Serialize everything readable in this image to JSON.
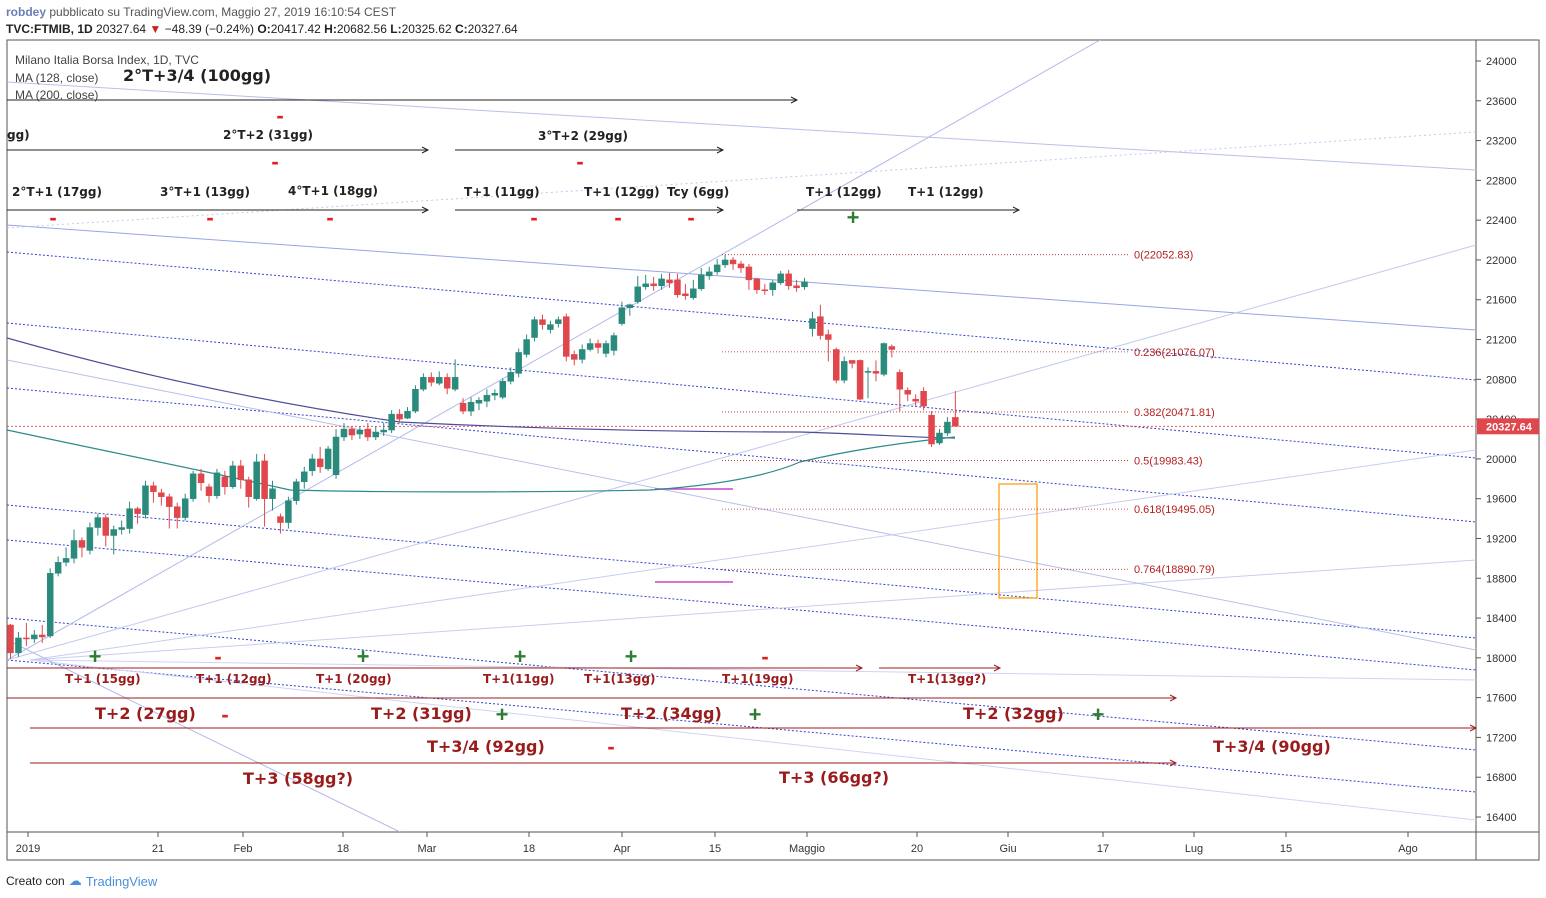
{
  "header": {
    "author": "robdey",
    "published": "pubblicato su TradingView.com, Maggio 27, 2019 16:10:54 CEST",
    "symbol": "TVC:FTMIB, 1D",
    "last": "20327.64",
    "change": "−48.39 (−0.24%)",
    "ohlc_o_label": "O:",
    "ohlc_o": "20417.42",
    "ohlc_h_label": "H:",
    "ohlc_h": "20682.56",
    "ohlc_l_label": "L:",
    "ohlc_l": "20325.62",
    "ohlc_c_label": "C:",
    "ohlc_c": "20327.64"
  },
  "legend": {
    "title": "Milano Italia Borsa Index, 1D, TVC",
    "ma128": "MA (128, close)",
    "ma200": "MA (200, close)"
  },
  "footer": {
    "created_with": "Creato con",
    "brand": "TradingView"
  },
  "colors": {
    "up": "#2a8a7c",
    "down": "#e0474c",
    "annot": "#9b1c1c",
    "plus": "#2e7d32",
    "minus": "#e02020",
    "fib": "#b22222",
    "channel_blue": "#2233cc",
    "ma128": "#2a8a8a",
    "ma200": "#4b4d9a",
    "last_badge": "#e0474c",
    "box": "#ff9800",
    "magenta": "#cc44cc"
  },
  "chart_data": {
    "type": "candlestick",
    "title": "Milano Italia Borsa Index, 1D, TVC",
    "y_axis": {
      "ylim": [
        16200,
        24200
      ],
      "ticks": [
        16400,
        16800,
        17200,
        17600,
        18000,
        18400,
        18800,
        19200,
        19600,
        20000,
        20400,
        20800,
        21200,
        21600,
        22000,
        22400,
        22800,
        23200,
        23600,
        24000
      ],
      "side": "right"
    },
    "x_axis": {
      "labels": [
        "2019",
        "21",
        "Feb",
        "18",
        "Mar",
        "18",
        "Apr",
        "15",
        "Maggio",
        "20",
        "Giu",
        "17",
        "Lug",
        "15",
        "Ago"
      ]
    },
    "last_price": 20327.64,
    "candles_start": "2019-01-02",
    "candles": [
      [
        18330,
        18050,
        18340,
        17990
      ],
      [
        18050,
        18200,
        18260,
        18010
      ],
      [
        18200,
        18190,
        18350,
        18120
      ],
      [
        18190,
        18230,
        18280,
        18150
      ],
      [
        18230,
        18210,
        18330,
        18150
      ],
      [
        18220,
        18850,
        18900,
        18200
      ],
      [
        18850,
        18960,
        19020,
        18820
      ],
      [
        18960,
        19000,
        19110,
        18920
      ],
      [
        19000,
        19180,
        19290,
        18950
      ],
      [
        19180,
        19110,
        19210,
        19010
      ],
      [
        19080,
        19310,
        19360,
        19040
      ],
      [
        19310,
        19410,
        19450,
        19230
      ],
      [
        19410,
        19230,
        19440,
        19120
      ],
      [
        19230,
        19290,
        19330,
        19040
      ],
      [
        19290,
        19310,
        19380,
        19240
      ],
      [
        19300,
        19500,
        19570,
        19250
      ],
      [
        19500,
        19450,
        19520,
        19350
      ],
      [
        19440,
        19730,
        19780,
        19400
      ],
      [
        19730,
        19670,
        19770,
        19560
      ],
      [
        19660,
        19620,
        19700,
        19530
      ],
      [
        19620,
        19520,
        19650,
        19300
      ],
      [
        19520,
        19410,
        19560,
        19300
      ],
      [
        19410,
        19600,
        19650,
        19380
      ],
      [
        19600,
        19850,
        19880,
        19570
      ],
      [
        19850,
        19760,
        19900,
        19680
      ],
      [
        19720,
        19630,
        19750,
        19560
      ],
      [
        19630,
        19860,
        19900,
        19600
      ],
      [
        19820,
        19720,
        19880,
        19640
      ],
      [
        19720,
        19930,
        19980,
        19700
      ],
      [
        19930,
        19790,
        19990,
        19700
      ],
      [
        19790,
        19620,
        19820,
        19510
      ],
      [
        19600,
        19970,
        20050,
        19580
      ],
      [
        19980,
        19600,
        20050,
        19320
      ],
      [
        19600,
        19700,
        19780,
        19480
      ],
      [
        19420,
        19360,
        19450,
        19250
      ],
      [
        19360,
        19580,
        19620,
        19300
      ],
      [
        19580,
        19770,
        19800,
        19540
      ],
      [
        19770,
        19870,
        19920,
        19700
      ],
      [
        19880,
        20000,
        20050,
        19830
      ],
      [
        20000,
        19920,
        20120,
        19860
      ],
      [
        19900,
        20100,
        20130,
        19880
      ],
      [
        19840,
        20220,
        20300,
        19800
      ],
      [
        20220,
        20300,
        20360,
        20180
      ],
      [
        20300,
        20240,
        20330,
        20190
      ],
      [
        20250,
        20290,
        20330,
        20200
      ],
      [
        20300,
        20220,
        20360,
        20180
      ],
      [
        20220,
        20270,
        20330,
        20190
      ],
      [
        20270,
        20290,
        20360,
        20230
      ],
      [
        20290,
        20450,
        20490,
        20260
      ],
      [
        20450,
        20400,
        20500,
        20360
      ],
      [
        20410,
        20480,
        20520,
        20400
      ],
      [
        20480,
        20700,
        20740,
        20460
      ],
      [
        20700,
        20820,
        20860,
        20680
      ],
      [
        20820,
        20770,
        20870,
        20730
      ],
      [
        20760,
        20820,
        20880,
        20740
      ],
      [
        20820,
        20710,
        20860,
        20650
      ],
      [
        20700,
        20820,
        21000,
        20680
      ],
      [
        20560,
        20480,
        20610,
        20450
      ],
      [
        20480,
        20570,
        20620,
        20430
      ],
      [
        20560,
        20590,
        20620,
        20490
      ],
      [
        20580,
        20640,
        20700,
        20520
      ],
      [
        20640,
        20660,
        20700,
        20590
      ],
      [
        20620,
        20780,
        20810,
        20600
      ],
      [
        20780,
        20870,
        20920,
        20750
      ],
      [
        20860,
        21070,
        21110,
        20820
      ],
      [
        21050,
        21200,
        21250,
        21020
      ],
      [
        21220,
        21400,
        21430,
        21180
      ],
      [
        21400,
        21350,
        21450,
        21300
      ],
      [
        21300,
        21350,
        21390,
        21260
      ],
      [
        21360,
        21400,
        21430,
        21320
      ],
      [
        21430,
        21030,
        21460,
        20980
      ],
      [
        21050,
        21000,
        21090,
        20940
      ],
      [
        21000,
        21100,
        21150,
        20960
      ],
      [
        21100,
        21160,
        21210,
        21080
      ],
      [
        21160,
        21120,
        21200,
        21060
      ],
      [
        21060,
        21160,
        21190,
        21020
      ],
      [
        21090,
        21240,
        21270,
        21040
      ],
      [
        21360,
        21520,
        21580,
        21340
      ],
      [
        21520,
        21550,
        21560,
        21440
      ],
      [
        21580,
        21730,
        21840,
        21560
      ],
      [
        21730,
        21760,
        21850,
        21700
      ],
      [
        21760,
        21740,
        21830,
        21690
      ],
      [
        21740,
        21810,
        21860,
        21700
      ],
      [
        21800,
        21770,
        21870,
        21720
      ],
      [
        21800,
        21650,
        21860,
        21620
      ],
      [
        21660,
        21640,
        21760,
        21600
      ],
      [
        21620,
        21710,
        21800,
        21600
      ],
      [
        21710,
        21850,
        21920,
        21690
      ],
      [
        21840,
        21880,
        21930,
        21800
      ],
      [
        21880,
        21950,
        22010,
        21850
      ],
      [
        21950,
        22000,
        22052,
        21920
      ],
      [
        22000,
        21960,
        22030,
        21900
      ],
      [
        21960,
        21920,
        21990,
        21870
      ],
      [
        21930,
        21800,
        21960,
        21700
      ],
      [
        21810,
        21700,
        21820,
        21660
      ],
      [
        21700,
        21690,
        21760,
        21650
      ],
      [
        21700,
        21770,
        21800,
        21640
      ],
      [
        21770,
        21860,
        21890,
        21750
      ],
      [
        21860,
        21740,
        21900,
        21700
      ],
      [
        21740,
        21720,
        21800,
        21680
      ],
      [
        21730,
        21780,
        21820,
        21700
      ],
      [
        21310,
        21410,
        21480,
        21230
      ],
      [
        21430,
        21240,
        21550,
        21200
      ],
      [
        21250,
        21200,
        21300,
        20980
      ],
      [
        21100,
        20790,
        21120,
        20760
      ],
      [
        20790,
        20980,
        21030,
        20760
      ],
      [
        20990,
        20960,
        20990,
        20910
      ],
      [
        20990,
        20600,
        21000,
        20590
      ],
      [
        20870,
        20880,
        20920,
        20610
      ],
      [
        20880,
        20860,
        20990,
        20780
      ],
      [
        20850,
        21160,
        21170,
        20830
      ],
      [
        21130,
        21100,
        21150,
        21020
      ],
      [
        20870,
        20700,
        20900,
        20480
      ],
      [
        20690,
        20650,
        20720,
        20580
      ],
      [
        20600,
        20580,
        20650,
        20530
      ],
      [
        20680,
        20530,
        20720,
        20490
      ],
      [
        20440,
        20150,
        20480,
        20120
      ],
      [
        20160,
        20260,
        20300,
        20140
      ],
      [
        20260,
        20370,
        20420,
        20230
      ],
      [
        20417,
        20327,
        20682,
        20325
      ]
    ],
    "fibonacci": [
      {
        "label": "0(22052.83)",
        "value": 22052.83
      },
      {
        "label": "0.236(21076.07)",
        "value": 21076.07
      },
      {
        "label": "0.382(20471.81)",
        "value": 20471.81
      },
      {
        "label": "0.5(19983.43)",
        "value": 19983.43
      },
      {
        "label": "0.618(19495.05)",
        "value": 19495.05
      },
      {
        "label": "0.764(18890.79)",
        "value": 18890.79
      }
    ],
    "annotations_top": [
      {
        "text": "2°T+3/4 (100gg)"
      },
      {
        "text": "gg)"
      },
      {
        "text": "2°T+2 (31gg)"
      },
      {
        "text": "3°T+2 (29gg)"
      },
      {
        "text": "2°T+1 (17gg)"
      },
      {
        "text": "3°T+1 (13gg)"
      },
      {
        "text": "4°T+1 (18gg)"
      },
      {
        "text": "T+1 (11gg)"
      },
      {
        "text": "T+1 (12gg)"
      },
      {
        "text": "Tcy (6gg)"
      },
      {
        "text": "T+1 (12gg)"
      },
      {
        "text": "T+1 (12gg)"
      }
    ],
    "annotations_bottom": [
      {
        "text": "T+1 (15gg)"
      },
      {
        "text": "T+1 (12gg)"
      },
      {
        "text": "T+1 (20gg)"
      },
      {
        "text": "T+1(11gg)"
      },
      {
        "text": "T+1(13gg)"
      },
      {
        "text": "T+1(19gg)"
      },
      {
        "text": "T+1(13gg?)"
      },
      {
        "text": "T+2 (27gg)"
      },
      {
        "text": "T+2 (31gg)"
      },
      {
        "text": "T+2 (34gg)"
      },
      {
        "text": "T+2 (32gg)"
      },
      {
        "text": "T+3/4 (92gg)"
      },
      {
        "text": "T+3/4 (90gg)"
      },
      {
        "text": "T+3 (58gg?)"
      },
      {
        "text": "T+3 (66gg?)"
      }
    ],
    "signs": [
      "-",
      "-",
      "-",
      "-",
      "-",
      "-",
      "-",
      "-",
      "-",
      "+",
      "+",
      "+",
      "+",
      "+",
      "-",
      "-",
      "-",
      "+",
      "+",
      "+",
      "-"
    ]
  }
}
